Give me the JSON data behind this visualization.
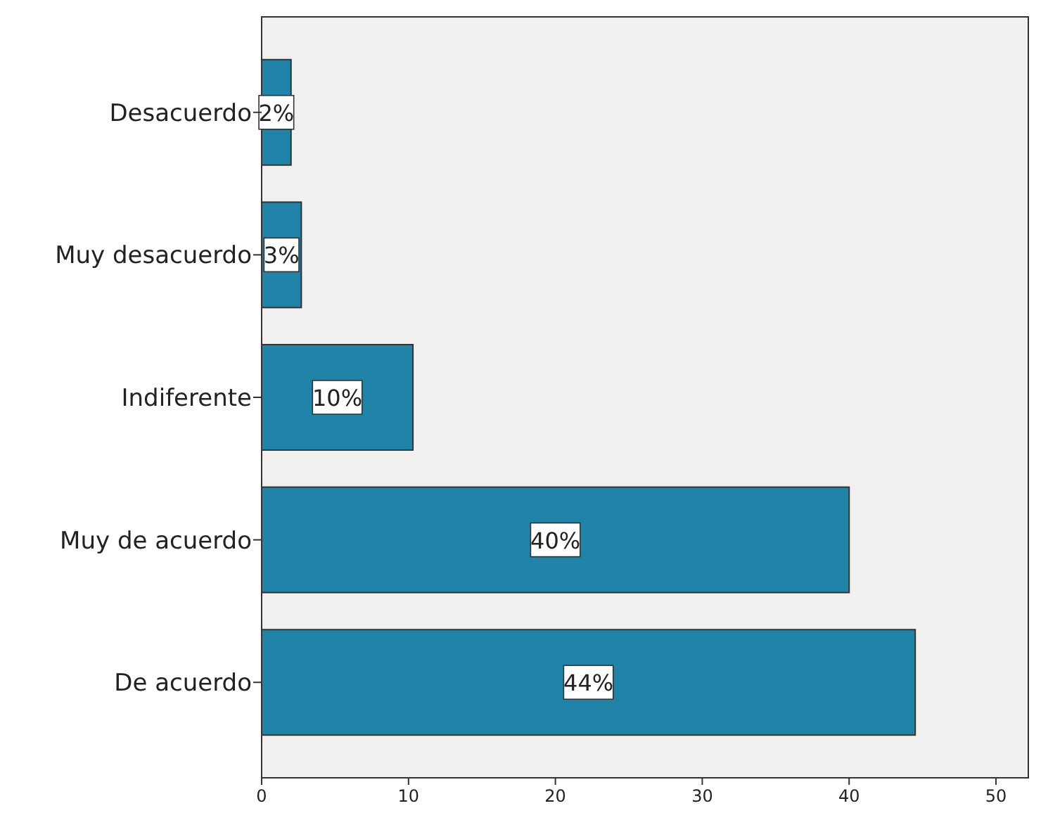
{
  "chart_data": {
    "type": "bar",
    "orientation": "horizontal",
    "categories": [
      "Desacuerdo",
      "Muy desacuerdo",
      "Indiferente",
      "Muy de acuerdo",
      "De acuerdo"
    ],
    "values": [
      2.0,
      2.7,
      10.3,
      40.0,
      44.5
    ],
    "value_labels": [
      "2%",
      "3%",
      "10%",
      "40%",
      "44%"
    ],
    "color": "#1f84a8",
    "xlim": [
      0,
      52.2
    ],
    "xticks": [
      0,
      10,
      20,
      30,
      40,
      50
    ],
    "grid": false
  }
}
